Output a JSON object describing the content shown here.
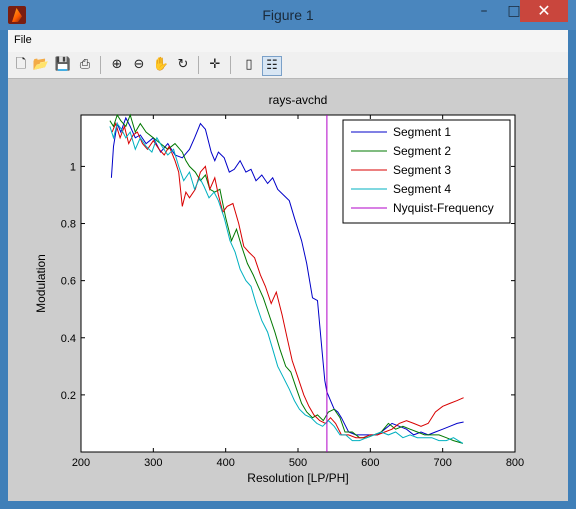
{
  "window": {
    "title": "Figure 1",
    "minimize_glyph": "–",
    "maximize_glyph": "□",
    "close_glyph": "✕"
  },
  "menu": {
    "file_label": "File"
  },
  "toolbar": {
    "items": [
      {
        "name": "new-figure-icon",
        "glyph": "🗋"
      },
      {
        "name": "open-file-icon",
        "glyph": "📂"
      },
      {
        "name": "save-icon",
        "glyph": "💾"
      },
      {
        "name": "print-icon",
        "glyph": "⎙"
      },
      {
        "name": "zoom-in-icon",
        "glyph": "⊕"
      },
      {
        "name": "zoom-out-icon",
        "glyph": "⊖"
      },
      {
        "name": "pan-hand-icon",
        "glyph": "✋"
      },
      {
        "name": "rotate-3d-icon",
        "glyph": "↻"
      },
      {
        "name": "data-cursor-icon",
        "glyph": "✛"
      },
      {
        "name": "colorbar-icon",
        "glyph": "▯"
      },
      {
        "name": "legend-icon",
        "glyph": "☷"
      }
    ]
  },
  "chart_data": {
    "type": "line",
    "title": "rays-avchd",
    "xlabel": "Resolution [LP/PH]",
    "ylabel": "Modulation",
    "xlim": [
      200,
      800
    ],
    "ylim": [
      0,
      1.18
    ],
    "xticks": [
      200,
      300,
      400,
      500,
      600,
      700,
      800
    ],
    "yticks": [
      0.2,
      0.4,
      0.6,
      0.8,
      1
    ],
    "legend_position": "top-right",
    "grid": false,
    "series": [
      {
        "name": "Segment 1",
        "color": "#0000c8",
        "x": [
          242,
          245,
          250,
          255,
          262,
          268,
          275,
          282,
          290,
          300,
          310,
          320,
          330,
          340,
          350,
          357,
          365,
          372,
          380,
          385,
          390,
          398,
          405,
          412,
          420,
          428,
          435,
          442,
          450,
          458,
          465,
          472,
          480,
          488,
          495,
          505,
          512,
          520,
          527,
          533,
          537,
          540,
          545,
          550,
          555,
          560,
          570,
          580,
          590,
          600,
          610,
          620,
          630,
          640,
          650,
          660,
          670,
          680,
          690,
          700,
          710,
          720,
          729
        ],
        "y": [
          0.96,
          1.07,
          1.15,
          1.12,
          1.17,
          1.14,
          1.1,
          1.11,
          1.08,
          1.1,
          1.05,
          1.08,
          1.04,
          1.03,
          1.06,
          1.1,
          1.15,
          1.13,
          1.05,
          1.02,
          1.05,
          1.03,
          0.98,
          0.99,
          1.02,
          0.98,
          0.99,
          0.95,
          0.97,
          0.94,
          0.96,
          0.92,
          0.9,
          0.88,
          0.82,
          0.74,
          0.66,
          0.54,
          0.53,
          0.36,
          0.25,
          0.21,
          0.18,
          0.15,
          0.14,
          0.12,
          0.07,
          0.06,
          0.06,
          0.06,
          0.06,
          0.08,
          0.1,
          0.09,
          0.08,
          0.06,
          0.07,
          0.06,
          0.07,
          0.08,
          0.09,
          0.1,
          0.105
        ]
      },
      {
        "name": "Segment 2",
        "color": "#007800",
        "x": [
          240,
          245,
          250,
          255,
          262,
          268,
          275,
          282,
          290,
          300,
          310,
          320,
          330,
          340,
          345,
          350,
          358,
          365,
          372,
          378,
          385,
          392,
          400,
          408,
          415,
          422,
          430,
          438,
          445,
          452,
          460,
          468,
          475,
          483,
          490,
          498,
          505,
          512,
          520,
          527,
          535,
          542,
          550,
          558,
          565,
          575,
          585,
          595,
          605,
          615,
          625,
          635,
          645,
          655,
          665,
          675,
          685,
          695,
          705,
          715,
          728
        ],
        "y": [
          1.16,
          1.14,
          1.18,
          1.16,
          1.14,
          1.18,
          1.12,
          1.15,
          1.12,
          1.1,
          1.08,
          1.06,
          1.08,
          1.05,
          1.02,
          1.0,
          0.98,
          0.95,
          0.97,
          0.92,
          0.91,
          0.92,
          0.82,
          0.74,
          0.78,
          0.72,
          0.66,
          0.62,
          0.58,
          0.54,
          0.48,
          0.42,
          0.36,
          0.3,
          0.28,
          0.22,
          0.17,
          0.14,
          0.12,
          0.13,
          0.11,
          0.14,
          0.15,
          0.12,
          0.07,
          0.07,
          0.05,
          0.05,
          0.06,
          0.07,
          0.1,
          0.08,
          0.09,
          0.08,
          0.07,
          0.06,
          0.06,
          0.06,
          0.05,
          0.04,
          0.03
        ]
      },
      {
        "name": "Segment 3",
        "color": "#d80000",
        "x": [
          243,
          248,
          254,
          260,
          266,
          272,
          278,
          285,
          292,
          300,
          308,
          315,
          322,
          330,
          335,
          340,
          345,
          350,
          358,
          365,
          372,
          378,
          385,
          390,
          396,
          402,
          410,
          418,
          425,
          432,
          440,
          448,
          455,
          463,
          470,
          478,
          485,
          492,
          500,
          508,
          515,
          522,
          530,
          538,
          545,
          552,
          560,
          570,
          580,
          590,
          600,
          610,
          620,
          630,
          640,
          650,
          660,
          670,
          680,
          690,
          700,
          710,
          720,
          729
        ],
        "y": [
          1.12,
          1.15,
          1.1,
          1.14,
          1.08,
          1.11,
          1.12,
          1.08,
          1.06,
          1.09,
          1.06,
          1.04,
          1.07,
          1.02,
          0.98,
          0.86,
          0.91,
          0.89,
          0.92,
          0.98,
          1.0,
          0.92,
          0.96,
          0.9,
          0.84,
          0.86,
          0.87,
          0.8,
          0.72,
          0.7,
          0.68,
          0.62,
          0.58,
          0.52,
          0.56,
          0.48,
          0.4,
          0.32,
          0.26,
          0.2,
          0.16,
          0.13,
          0.11,
          0.1,
          0.12,
          0.1,
          0.06,
          0.06,
          0.05,
          0.05,
          0.06,
          0.06,
          0.07,
          0.08,
          0.1,
          0.11,
          0.1,
          0.09,
          0.1,
          0.14,
          0.16,
          0.17,
          0.18,
          0.19
        ]
      },
      {
        "name": "Segment 4",
        "color": "#00b0c0",
        "x": [
          240,
          245,
          250,
          256,
          262,
          268,
          275,
          282,
          290,
          298,
          305,
          312,
          320,
          328,
          335,
          342,
          350,
          357,
          364,
          370,
          377,
          384,
          390,
          398,
          406,
          413,
          420,
          428,
          435,
          442,
          450,
          458,
          465,
          472,
          480,
          488,
          495,
          502,
          510,
          518,
          526,
          534,
          542,
          550,
          558,
          566,
          575,
          585,
          595,
          605,
          615,
          625,
          635,
          645,
          655,
          665,
          675,
          685,
          695,
          705,
          715,
          728
        ],
        "y": [
          1.14,
          1.1,
          1.15,
          1.13,
          1.1,
          1.12,
          1.06,
          1.1,
          1.07,
          1.05,
          1.1,
          1.07,
          1.04,
          1.06,
          1.0,
          0.95,
          0.98,
          0.92,
          0.96,
          0.93,
          0.89,
          0.91,
          0.88,
          0.82,
          0.74,
          0.7,
          0.64,
          0.6,
          0.58,
          0.52,
          0.46,
          0.42,
          0.36,
          0.3,
          0.26,
          0.22,
          0.18,
          0.15,
          0.13,
          0.12,
          0.1,
          0.09,
          0.11,
          0.09,
          0.06,
          0.06,
          0.04,
          0.04,
          0.05,
          0.06,
          0.07,
          0.06,
          0.07,
          0.05,
          0.06,
          0.05,
          0.05,
          0.05,
          0.04,
          0.04,
          0.05,
          0.03
        ]
      },
      {
        "name": "Nyquist-Frequency",
        "color": "#b000c8",
        "x": [
          540,
          540
        ],
        "y": [
          0,
          1.18
        ]
      }
    ]
  }
}
